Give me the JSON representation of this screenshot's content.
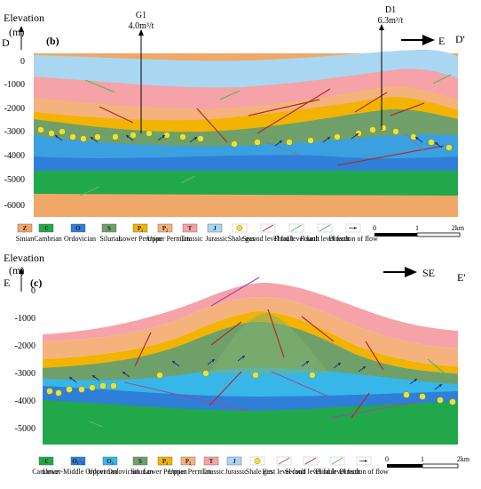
{
  "colors": {
    "sinian": "#f0a868",
    "cambrian": "#21a84b",
    "ordovician": "#2f7fd8",
    "upper_ordovician": "#36b7e8",
    "silurian": "#6fa06a",
    "lower_permian": "#f2b400",
    "upper_permian": "#f6b27c",
    "triassic": "#f5a3a8",
    "jurassic": "#a9d7f2",
    "shale_gas": "#e8e23c",
    "fault2": "#b22a2a",
    "fault3": "#5cb85c",
    "fault4": "#6b7fb8",
    "fault1": "#a04a9c"
  },
  "panel_b": {
    "elevation_label": "Elevation",
    "unit_label": "(m)",
    "start_label": "D",
    "panel_label": "(b)",
    "end_label": "D'",
    "direction_label": "E",
    "wells": [
      {
        "name": "G1",
        "value": "4.0m³/t"
      },
      {
        "name": "D1",
        "value": "6.3m³/t"
      }
    ],
    "y_ticks": [
      "0",
      "-1000",
      "-2000",
      "-3000",
      "-4000",
      "-5000",
      "-6000"
    ],
    "legend": [
      {
        "symbol": "Z",
        "label": "Sinian",
        "icon": "swatch-sinian"
      },
      {
        "symbol": "€",
        "label": "Cambrian",
        "icon": "swatch-cambrian"
      },
      {
        "symbol": "O",
        "label": "Ordovician",
        "icon": "swatch-ordovician"
      },
      {
        "symbol": "S",
        "label": "Silurian",
        "icon": "swatch-silurian"
      },
      {
        "symbol": "P₁",
        "label": "Lower Permian",
        "icon": "swatch-lower-permian"
      },
      {
        "symbol": "P₂",
        "label": "Upper Permian",
        "icon": "swatch-upper-permian"
      },
      {
        "symbol": "T",
        "label": "Triassic",
        "icon": "swatch-triassic"
      },
      {
        "symbol": "J",
        "label": "Jurassic",
        "icon": "swatch-jurassic"
      },
      {
        "symbol": "",
        "label": "Shale gas",
        "icon": "shale-gas-dot"
      },
      {
        "symbol": "",
        "label": "Second level fault",
        "icon": "fault-line-icon"
      },
      {
        "symbol": "",
        "label": "Third level fault",
        "icon": "fault-line-icon"
      },
      {
        "symbol": "",
        "label": "Fourth level fault",
        "icon": "fault-line-icon"
      },
      {
        "symbol": "",
        "label": "Direction of flow",
        "icon": "arrow-icon"
      }
    ],
    "scale": [
      "0",
      "1",
      "2km"
    ]
  },
  "panel_c": {
    "elevation_label": "Elevation",
    "unit_label": "(m)",
    "start_label": "E",
    "panel_label": "(c)",
    "end_label": "E'",
    "direction_label": "SE",
    "y_ticks": [
      "0",
      "-1000",
      "-2000",
      "-3000",
      "-4000",
      "-5000"
    ],
    "legend": [
      {
        "symbol": "€",
        "label": "Cambrian",
        "icon": "swatch-cambrian"
      },
      {
        "symbol": "O₁₋₂",
        "label": "Lower-Middle Ordovician",
        "icon": "swatch-ordovician"
      },
      {
        "symbol": "O₃",
        "label": "Upper Ordovician",
        "icon": "swatch-upper-ordovician"
      },
      {
        "symbol": "S",
        "label": "Silurian",
        "icon": "swatch-silurian"
      },
      {
        "symbol": "P₁",
        "label": "Lower Permian",
        "icon": "swatch-lower-permian"
      },
      {
        "symbol": "P₂",
        "label": "Upper Permian",
        "icon": "swatch-upper-permian"
      },
      {
        "symbol": "T",
        "label": "Triassic",
        "icon": "swatch-triassic"
      },
      {
        "symbol": "J",
        "label": "Jurassic",
        "icon": "swatch-jurassic"
      },
      {
        "symbol": "",
        "label": "Shale gas",
        "icon": "shale-gas-dot"
      },
      {
        "symbol": "",
        "label": "First level fault",
        "icon": "fault-line-icon"
      },
      {
        "symbol": "",
        "label": "Second level fault",
        "icon": "fault-line-icon"
      },
      {
        "symbol": "",
        "label": "Third level fault",
        "icon": "fault-line-icon"
      },
      {
        "symbol": "",
        "label": "Direction of flow",
        "icon": "arrow-icon"
      }
    ],
    "scale": [
      "0",
      "1",
      "2km"
    ]
  }
}
